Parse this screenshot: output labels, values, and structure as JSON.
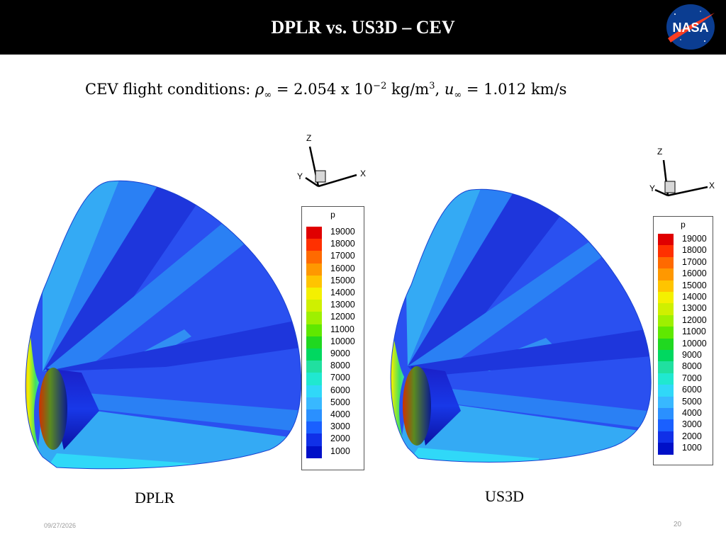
{
  "slide": {
    "title": "DPLR vs. US3D – CEV",
    "logo_text": "NASA",
    "date": "09/27/2026",
    "page_number": "20"
  },
  "conditions": {
    "prefix": "CEV flight conditions: ",
    "rho_symbol": "ρ",
    "inf_subscript": "∞",
    "rho_eq": " = 2.054 x 10",
    "rho_exp": "−2",
    "rho_units": " kg/m",
    "rho_units_exp": "3",
    "sep": ", ",
    "u_symbol": "u",
    "u_eq": " = 1.012 km/s"
  },
  "panels": [
    {
      "caption": "DPLR",
      "axes": {
        "x": "X",
        "y": "Y",
        "z": "Z"
      },
      "legend_title": "p",
      "legend_levels": [
        "19000",
        "18000",
        "17000",
        "16000",
        "15000",
        "14000",
        "13000",
        "12000",
        "11000",
        "10000",
        "9000",
        "8000",
        "7000",
        "6000",
        "5000",
        "4000",
        "3000",
        "2000",
        "1000"
      ]
    },
    {
      "caption": "US3D",
      "axes": {
        "x": "X",
        "y": "Y",
        "z": "Z"
      },
      "legend_title": "p",
      "legend_levels": [
        "19000",
        "18000",
        "17000",
        "16000",
        "15000",
        "14000",
        "13000",
        "12000",
        "11000",
        "10000",
        "9000",
        "8000",
        "7000",
        "6000",
        "5000",
        "4000",
        "3000",
        "2000",
        "1000"
      ]
    }
  ],
  "colors": {
    "legend": [
      "#e00000",
      "#ff3000",
      "#ff6a00",
      "#ff9800",
      "#ffc400",
      "#f4f000",
      "#cff000",
      "#9ef000",
      "#5fe800",
      "#20d820",
      "#00d860",
      "#20e0a0",
      "#20e8d0",
      "#30d8f8",
      "#38b8ff",
      "#2a90ff",
      "#1a60ff",
      "#1030e8",
      "#0010c8"
    ],
    "plume_base": "#2a50f0",
    "plume_light": "#34aaf4",
    "plume_mid": "#2a80f4",
    "plume_dark": "#1e36dc"
  }
}
